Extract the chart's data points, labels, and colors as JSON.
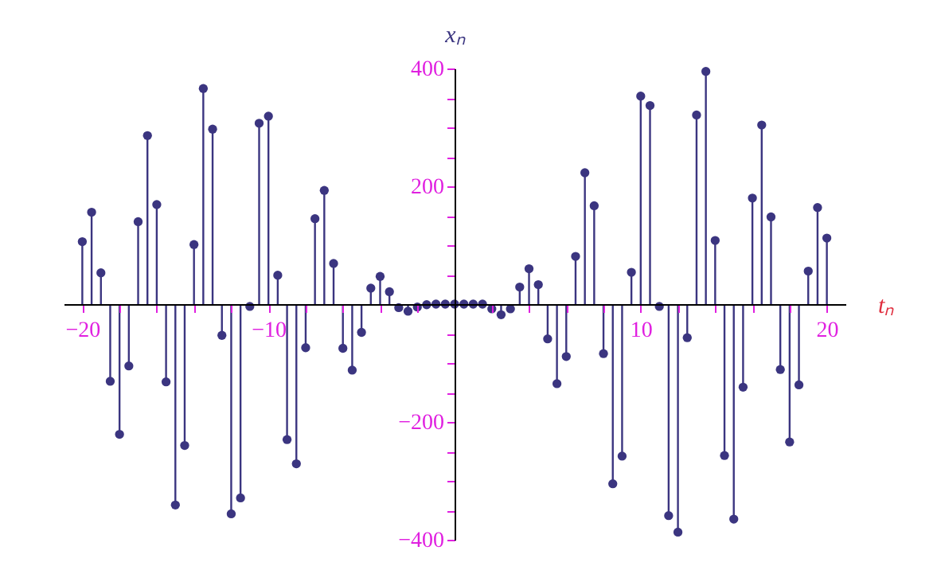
{
  "chart_data": {
    "type": "lollipop",
    "xlabel": "tₙ",
    "ylabel": "xₙ",
    "x": [
      -20,
      -19.5,
      -19,
      -18.5,
      -18,
      -17.5,
      -17,
      -16.5,
      -16,
      -15.5,
      -15,
      -14.5,
      -14,
      -13.5,
      -13,
      -12.5,
      -12,
      -11.5,
      -11,
      -10.5,
      -10,
      -9.5,
      -9,
      -8.5,
      -8,
      -7.5,
      -7,
      -6.5,
      -6,
      -5.5,
      -5,
      -4.5,
      -4,
      -3.5,
      -3,
      -2.5,
      -2,
      -1.5,
      -1,
      -0.5,
      0,
      0.5,
      1,
      1.5,
      2,
      2.5,
      3,
      3.5,
      4,
      4.5,
      5,
      5.5,
      6,
      6.5,
      7,
      7.5,
      8,
      8.5,
      9,
      9.5,
      10,
      10.5,
      11,
      11.5,
      12,
      12.5,
      13,
      13.5,
      14,
      14.5,
      15,
      15.5,
      16,
      16.5,
      17,
      17.5,
      18,
      18.5,
      19,
      19.5,
      20
    ],
    "values": [
      106,
      156,
      53,
      -131,
      -221,
      -105,
      140,
      286,
      169,
      -132,
      -341,
      -240,
      101,
      366,
      297,
      -53,
      -356,
      -329,
      -4,
      307,
      319,
      49,
      -230,
      -271,
      -74,
      145,
      193,
      69,
      -75,
      -112,
      -48,
      27,
      47,
      21,
      -6,
      -12,
      -5,
      -1,
      0,
      0,
      0,
      0,
      0,
      0,
      -8,
      -18,
      -8,
      29,
      60,
      33,
      -59,
      -135,
      -89,
      81,
      223,
      167,
      -84,
      -305,
      -258,
      54,
      353,
      337,
      -4,
      -359,
      -387,
      -57,
      321,
      395,
      108,
      -257,
      -365,
      -141,
      180,
      304,
      148,
      -111,
      -234,
      -137,
      56,
      164,
      112
    ],
    "color": "#3b3580",
    "marker": "circle",
    "xlim": [
      -21,
      21
    ],
    "ylim": [
      -400,
      400
    ],
    "xticks": [
      {
        "value": -20,
        "label": "−20"
      },
      {
        "value": -18,
        "label": null
      },
      {
        "value": -16,
        "label": null
      },
      {
        "value": -14,
        "label": null
      },
      {
        "value": -12,
        "label": null
      },
      {
        "value": -10,
        "label": "−10"
      },
      {
        "value": -8,
        "label": null
      },
      {
        "value": -6,
        "label": null
      },
      {
        "value": -4,
        "label": null
      },
      {
        "value": -2,
        "label": null
      },
      {
        "value": 2,
        "label": null
      },
      {
        "value": 4,
        "label": null
      },
      {
        "value": 6,
        "label": null
      },
      {
        "value": 8,
        "label": null
      },
      10,
      {
        "value": 12,
        "label": null
      },
      {
        "value": 14,
        "label": null
      },
      {
        "value": 16,
        "label": null
      },
      {
        "value": 18,
        "label": null
      },
      20
    ],
    "yticks": [
      {
        "value": -400,
        "label": "−400"
      },
      {
        "value": -350,
        "label": null
      },
      {
        "value": -300,
        "label": null
      },
      {
        "value": -250,
        "label": null
      },
      {
        "value": -200,
        "label": "−200"
      },
      {
        "value": -150,
        "label": null
      },
      {
        "value": -100,
        "label": null
      },
      {
        "value": -50,
        "label": null
      },
      {
        "value": 50,
        "label": null
      },
      {
        "value": 100,
        "label": null
      },
      {
        "value": 150,
        "label": null
      },
      200,
      {
        "value": 250,
        "label": null
      },
      {
        "value": 300,
        "label": null
      },
      {
        "value": 350,
        "label": null
      },
      400
    ],
    "grid": false
  }
}
